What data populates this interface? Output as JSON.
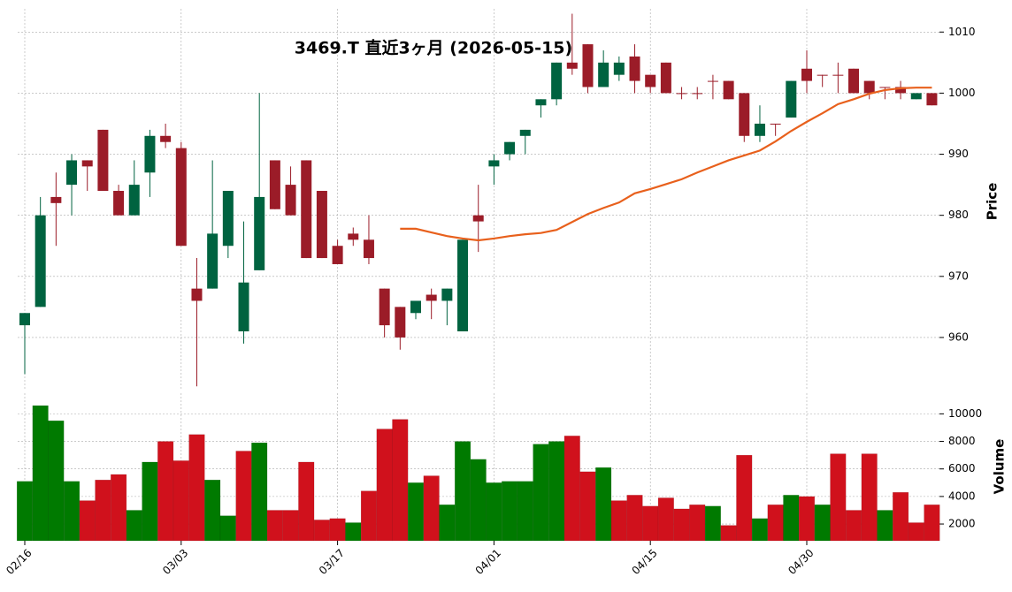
{
  "chart_data": {
    "type": "candlestick",
    "title": "3469.T  直近3ヶ月  (2026-05-15)",
    "ylabel": "Price",
    "y2label": "Volume",
    "categories": [
      "02/16",
      null,
      null,
      null,
      null,
      null,
      null,
      null,
      null,
      null,
      "03/03",
      null,
      null,
      null,
      null,
      null,
      null,
      null,
      null,
      null,
      "03/17",
      null,
      null,
      null,
      null,
      null,
      null,
      null,
      null,
      null,
      "04/01",
      null,
      null,
      null,
      null,
      null,
      null,
      null,
      null,
      null,
      "04/15",
      null,
      null,
      null,
      null,
      null,
      null,
      null,
      null,
      null,
      "04/30",
      null,
      null,
      null,
      null,
      null,
      null,
      null,
      null
    ],
    "open": [
      962,
      965,
      983,
      985,
      989,
      994,
      984,
      980,
      987,
      993,
      991,
      968,
      968,
      975,
      961,
      971,
      989,
      985,
      989,
      984,
      975,
      977,
      976,
      968,
      965,
      964,
      967,
      966,
      961,
      980,
      988,
      990,
      993,
      998,
      999,
      1005,
      1008,
      1001,
      1003,
      1006,
      1003,
      1005,
      1000,
      1000,
      1002,
      1002,
      1000,
      993,
      995,
      996,
      1004,
      1003,
      1003,
      1004,
      1002,
      1001,
      1001,
      999,
      1000
    ],
    "high": [
      964,
      983,
      987,
      990,
      989,
      994,
      985,
      989,
      994,
      995,
      992,
      973,
      989,
      984,
      979,
      1000,
      989,
      988,
      989,
      984,
      976,
      978,
      980,
      968,
      965,
      966,
      968,
      968,
      976,
      985,
      990,
      992,
      994,
      999,
      1005,
      1013,
      1008,
      1007,
      1006,
      1008,
      1003,
      1005,
      1001,
      1001,
      1003,
      1002,
      1000,
      998,
      995,
      1002,
      1007,
      1003,
      1005,
      1004,
      1002,
      1001,
      1002,
      1000,
      1000
    ],
    "low": [
      954,
      965,
      975,
      980,
      984,
      984,
      980,
      980,
      983,
      991,
      975,
      952,
      968,
      973,
      959,
      971,
      981,
      980,
      973,
      973,
      972,
      975,
      972,
      960,
      958,
      963,
      963,
      962,
      961,
      974,
      985,
      989,
      990,
      996,
      998,
      1003,
      1000,
      1001,
      1002,
      1000,
      1000,
      1000,
      999,
      999,
      999,
      999,
      992,
      992,
      993,
      996,
      1000,
      1001,
      1000,
      1000,
      999,
      999,
      999,
      999,
      998
    ],
    "close": [
      964,
      980,
      982,
      989,
      988,
      984,
      980,
      985,
      993,
      992,
      975,
      966,
      977,
      984,
      969,
      983,
      981,
      980,
      973,
      973,
      972,
      976,
      973,
      962,
      960,
      966,
      966,
      968,
      976,
      979,
      989,
      992,
      994,
      999,
      1005,
      1004,
      1001,
      1005,
      1005,
      1002,
      1001,
      1000,
      1000,
      1000,
      1002,
      999,
      993,
      995,
      995,
      1002,
      1002,
      1003,
      1003,
      1000,
      1000,
      1001,
      1000,
      1000,
      998
    ],
    "volume": [
      5100,
      10600,
      9500,
      5100,
      3700,
      5200,
      5600,
      3000,
      6500,
      8000,
      6600,
      8500,
      5200,
      2600,
      7300,
      7900,
      3000,
      3000,
      6500,
      2300,
      2400,
      2100,
      4400,
      8900,
      9600,
      5000,
      5500,
      3400,
      8000,
      6700,
      5000,
      5100,
      5100,
      7800,
      8000,
      8400,
      5800,
      6100,
      3700,
      4100,
      3300,
      3900,
      3100,
      3400,
      3300,
      1900,
      7000,
      2400,
      3400,
      4100,
      4000,
      3400,
      7100,
      3000,
      7100,
      3000,
      4300,
      2100,
      3400
    ],
    "ma": [
      null,
      null,
      null,
      null,
      null,
      null,
      null,
      null,
      null,
      null,
      null,
      null,
      null,
      null,
      null,
      null,
      null,
      null,
      null,
      null,
      null,
      null,
      null,
      null,
      977.8,
      977.8,
      977.2,
      976.6,
      976.2,
      975.9,
      976.2,
      976.6,
      976.9,
      977.1,
      977.6,
      978.9,
      980.2,
      981.2,
      982.1,
      983.6,
      984.3,
      985.1,
      985.9,
      987.0,
      988.0,
      989.0,
      989.8,
      990.6,
      992.1,
      993.8,
      995.3,
      996.7,
      998.2,
      999.0,
      999.9,
      1000.5,
      1000.8,
      1000.9,
      1000.9
    ],
    "up_color": "#006340",
    "down_color": "#9b1c28",
    "volume_up_color": "#007a00",
    "volume_down_color": "#d0111c",
    "ma_color": "#e8601c",
    "ylim": [
      951.6,
      1013.8
    ],
    "yticks": [
      960,
      970,
      980,
      990,
      1000,
      1010
    ],
    "volume_ylim": [
      784,
      11500
    ],
    "volume_yticks": [
      2000,
      4000,
      6000,
      8000,
      10000
    ],
    "grid": true
  }
}
